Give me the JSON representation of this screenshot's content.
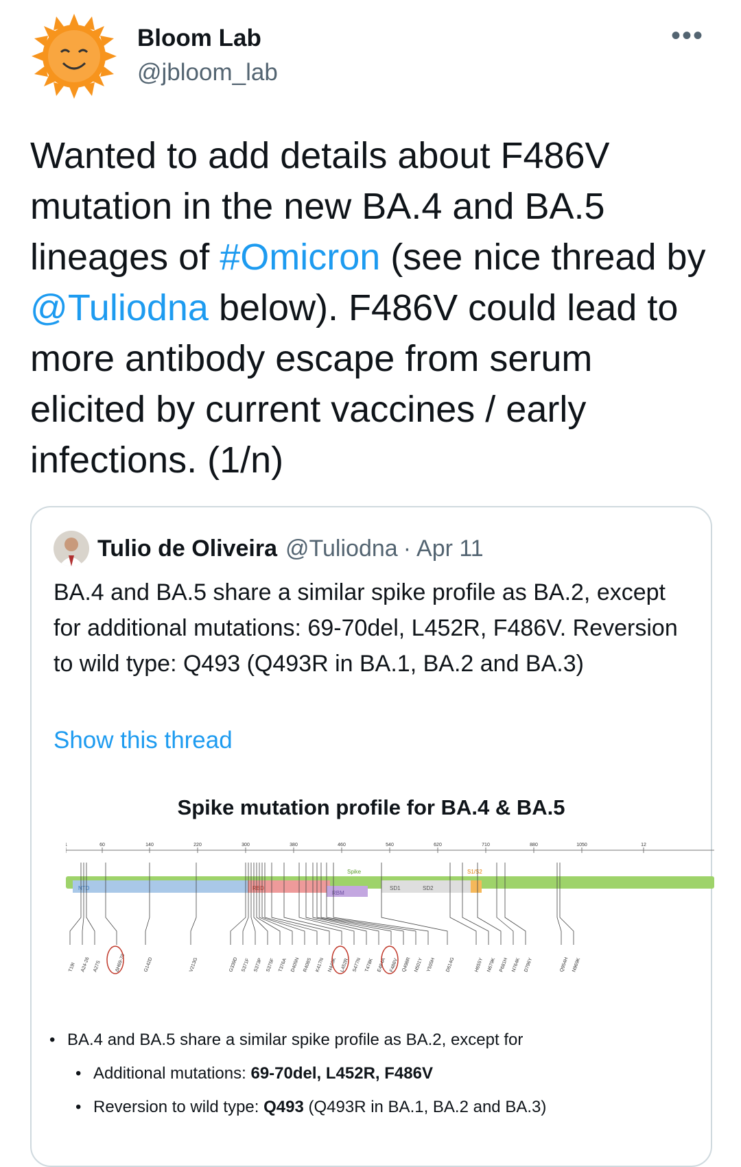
{
  "user": {
    "name": "Bloom Lab",
    "handle": "@jbloom_lab"
  },
  "more_label": "•••",
  "tweet": {
    "p1": "Wanted to add details about F486V mutation in the new BA.4 and BA.5 lineages of ",
    "hashtag": "#Omicron",
    "p2": " (see nice thread by ",
    "mention": "@Tuliodna",
    "p3": " below). F486V could lead to more antibody escape from serum elicited by current vaccines / early infections. (1/n)"
  },
  "quoted": {
    "name": "Tulio de Oliveira",
    "handle": "@Tuliodna",
    "separator": "·",
    "date": "Apr 11",
    "text": "BA.4 and BA.5 share a similar spike profile as BA.2, except for additional mutations: 69-70del, L452R, F486V. Reversion to wild type: Q493 (Q493R in BA.1, BA.2 and BA.3)",
    "show_thread": "Show this thread",
    "figure": {
      "title": "Spike mutation profile for BA.4 & BA.5",
      "axis_ticks": [
        "1",
        "60",
        "140",
        "220",
        "300",
        "380",
        "460",
        "540",
        "620",
        "710",
        "880",
        "1050",
        "12"
      ],
      "domains": [
        "NTD",
        "RBD",
        "RBM",
        "SD1",
        "SD2",
        "Spike",
        "S1/S2"
      ],
      "mutations": [
        "T19I",
        "A24-26",
        "A27S",
        "ΔH69-70",
        "G142D",
        "V213G",
        "G339D",
        "S371F",
        "S373P",
        "S375F",
        "T376A",
        "D405N",
        "R408S",
        "K417N",
        "N440K",
        "L452R",
        "S477N",
        "T478K",
        "E484A",
        "F486V",
        "Q498R",
        "N501Y",
        "Y505H",
        "D614G",
        "H655Y",
        "N679K",
        "P681H",
        "N764K",
        "D796Y",
        "Q954H",
        "N969K"
      ],
      "bullets": {
        "b1": "BA.4 and BA.5 share a similar spike profile as BA.2, except for",
        "b2_prefix": "Additional mutations: ",
        "b2_bold": "69-70del, L452R, F486V",
        "b3_prefix": "Reversion to wild type: ",
        "b3_bold": "Q493",
        "b3_suffix": " (Q493R in BA.1, BA.2 and BA.3)"
      }
    }
  }
}
